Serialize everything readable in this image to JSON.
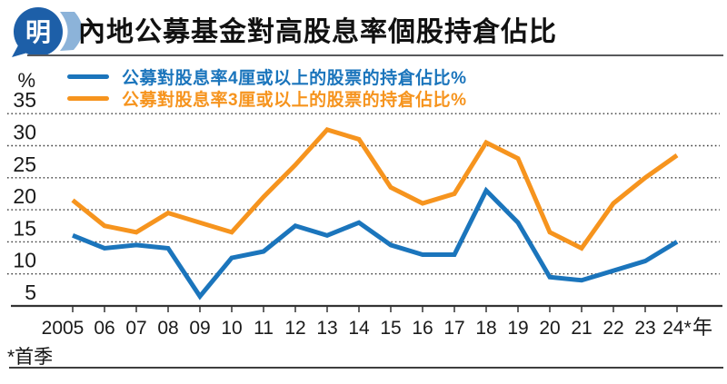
{
  "logo": {
    "text": "明"
  },
  "header": {
    "title": "內地公募基金對高股息率個股持倉佔比"
  },
  "legend": [
    {
      "label": "公募對股息率4厘或以上的股票的持倉佔比%",
      "color": "#1b75bc"
    },
    {
      "label": "公募對股息率3厘或以上的股票的持倉佔比%",
      "color": "#f6941e"
    }
  ],
  "footnote": "*首季",
  "colors": {
    "series_4pct": "#1b75bc",
    "series_3pct": "#f6941e",
    "axis": "#333333",
    "gridline": "#3a3a3a",
    "text": "#1a1a1a",
    "logo_bubble": "#1d5fa8",
    "logo_swoosh": "#8cb3d9"
  },
  "chart_data": {
    "type": "line",
    "title": "內地公募基金對高股息率個股持倉佔比",
    "y_unit_label": "%",
    "x_unit_label": "年",
    "footnote": "*首季",
    "categories": [
      "2005",
      "06",
      "07",
      "08",
      "09",
      "10",
      "11",
      "12",
      "13",
      "14",
      "15",
      "16",
      "17",
      "18",
      "19",
      "20",
      "21",
      "22",
      "23",
      "24*"
    ],
    "series": [
      {
        "name": "公募對股息率4厘或以上的股票的持倉佔比%",
        "color": "#1b75bc",
        "values": [
          16,
          14,
          14.5,
          14,
          6.5,
          12.5,
          13.5,
          17.5,
          16,
          18,
          14.5,
          13,
          13,
          23,
          18,
          9.5,
          9,
          10.5,
          12,
          15
        ]
      },
      {
        "name": "公募對股息率3厘或以上的股票的持倉佔比%",
        "color": "#f6941e",
        "values": [
          21.5,
          17.5,
          16.5,
          19.5,
          18,
          16.5,
          22,
          27,
          32.5,
          31,
          23.5,
          21,
          22.5,
          30.5,
          28,
          16.5,
          14,
          21,
          25,
          28.5
        ]
      }
    ],
    "y_ticks": [
      35,
      30,
      25,
      20,
      15,
      10,
      5
    ],
    "ylim": [
      5,
      37
    ],
    "grid": "dotted-horizontal",
    "legend_position": "top-left"
  }
}
